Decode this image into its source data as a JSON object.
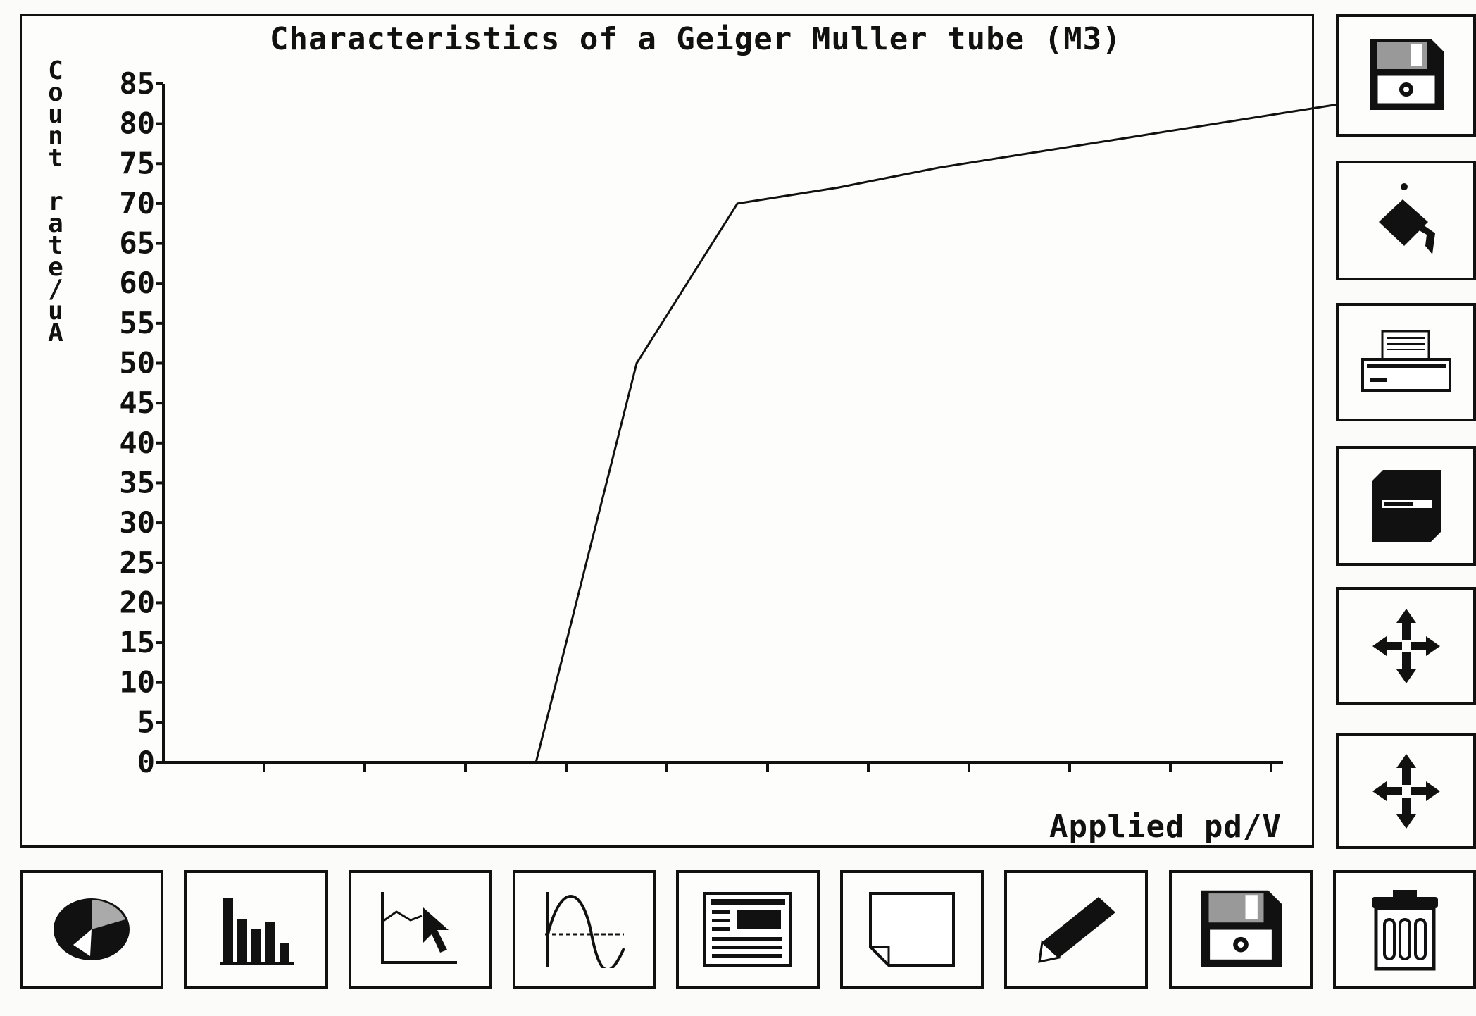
{
  "chart_data": {
    "type": "line",
    "title": "Characteristics of a Geiger Muller tube (M3)",
    "ylabel": "Count rate/uA",
    "xlabel": "Applied pd/V",
    "ylim": [
      0,
      85
    ],
    "yticks": [
      "0",
      "5",
      "10",
      "15",
      "20",
      "25",
      "30",
      "35",
      "40",
      "45",
      "50",
      "55",
      "60",
      "65",
      "70",
      "75",
      "80",
      "85"
    ],
    "x_tick_count": 11,
    "x": [
      0.6,
      3.7,
      4.7,
      5.7,
      6.7,
      7.7,
      8.7,
      9.7,
      10.7,
      11.7
    ],
    "values": [
      0,
      0,
      50,
      70,
      72,
      74.5,
      76.5,
      78.5,
      80.5,
      82.5
    ]
  },
  "toolbar": {
    "side": [
      "save-disk-icon",
      "paint-fill-icon",
      "printer-icon",
      "disk-drive-icon",
      "move-arrows-icon",
      "move-arrows-icon"
    ],
    "bottom": [
      "pie-chart-icon",
      "bar-chart-icon",
      "line-graph-cursor-icon",
      "curve-graph-icon",
      "text-document-icon",
      "blank-page-icon",
      "pencil-icon",
      "save-disk-icon",
      "trash-bin-icon"
    ]
  }
}
